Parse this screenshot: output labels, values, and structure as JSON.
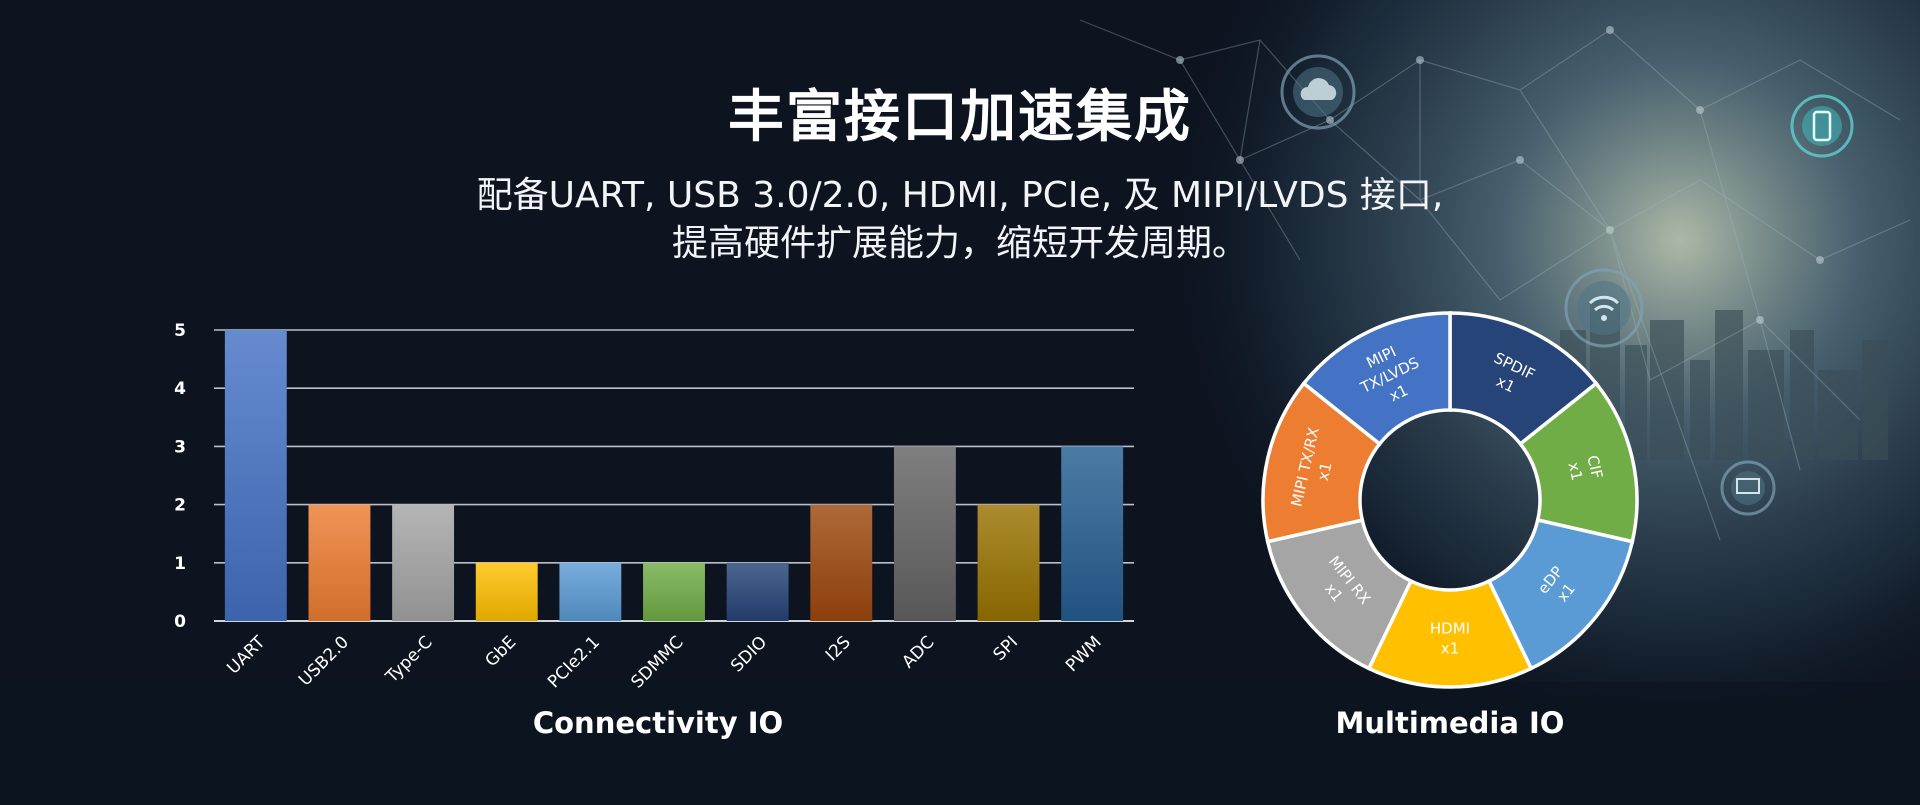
{
  "header": {
    "title": "丰富接口加速集成",
    "subtitle_line1": "配备UART, USB 3.0/2.0, HDMI, PCIe, 及 MIPI/LVDS 接口,",
    "subtitle_line2": "提高硬件扩展能力，缩短开发周期。"
  },
  "chart_data": [
    {
      "type": "bar",
      "title": "Connectivity IO",
      "categories": [
        "UART",
        "USB2.0",
        "Type-C",
        "GbE",
        "PCIe2.1",
        "SDMMC",
        "SDIO",
        "I2S",
        "ADC",
        "SPI",
        "PWM"
      ],
      "values": [
        5,
        2,
        2,
        1,
        1,
        1,
        1,
        2,
        3,
        2,
        3
      ],
      "ylim": [
        0,
        5
      ],
      "yticks": [
        "0",
        "1",
        "2",
        "3",
        "4",
        "5"
      ],
      "grid": true,
      "colors": [
        "#4472c4",
        "#ed7d31",
        "#a5a5a5",
        "#ffc000",
        "#5b9bd5",
        "#70ad47",
        "#264478",
        "#9e480e",
        "#636363",
        "#997300",
        "#255e91"
      ]
    },
    {
      "type": "pie",
      "title": "Multimedia IO",
      "donut": true,
      "slices": [
        {
          "line1": "SPDIF",
          "line2": "x1",
          "value": 1,
          "color": "#264478"
        },
        {
          "line1": "CIF",
          "line2": "x1",
          "value": 1,
          "color": "#70ad47"
        },
        {
          "line1": "eDP",
          "line2": "x1",
          "value": 1,
          "color": "#5b9bd5"
        },
        {
          "line1": "HDMI",
          "line2": "x1",
          "value": 1,
          "color": "#ffc000"
        },
        {
          "line1": "MIPI RX",
          "line2": "x1",
          "value": 1,
          "color": "#a5a5a5"
        },
        {
          "line1": "MIPI TX/RX",
          "line2": "x1",
          "value": 1,
          "color": "#ed7d31"
        },
        {
          "line1": "MIPI",
          "line2": "TX/LVDS",
          "line3": "x1",
          "value": 1,
          "color": "#4472c4"
        }
      ]
    }
  ]
}
